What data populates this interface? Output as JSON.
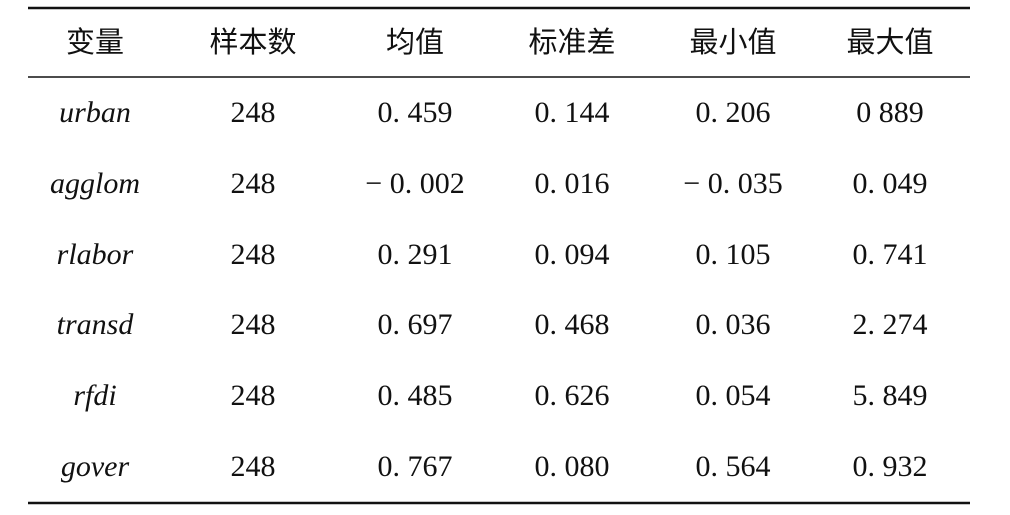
{
  "table": {
    "header": [
      "变量",
      "样本数",
      "均值",
      "标准差",
      "最小值",
      "最大值"
    ],
    "rows": [
      [
        "urban",
        "248",
        "0. 459",
        "0. 144",
        "0. 206",
        "0 889"
      ],
      [
        "agglom",
        "248",
        "− 0. 002",
        "0. 016",
        "− 0. 035",
        "0. 049"
      ],
      [
        "rlabor",
        "248",
        "0. 291",
        "0. 094",
        "0. 105",
        "0. 741"
      ],
      [
        "transd",
        "248",
        "0. 697",
        "0. 468",
        "0. 036",
        "2. 274"
      ],
      [
        "rfdi",
        "248",
        "0. 485",
        "0. 626",
        "0. 054",
        "5. 849"
      ],
      [
        "gover",
        "248",
        "0. 767",
        "0. 080",
        "0. 564",
        "0. 932"
      ]
    ]
  }
}
